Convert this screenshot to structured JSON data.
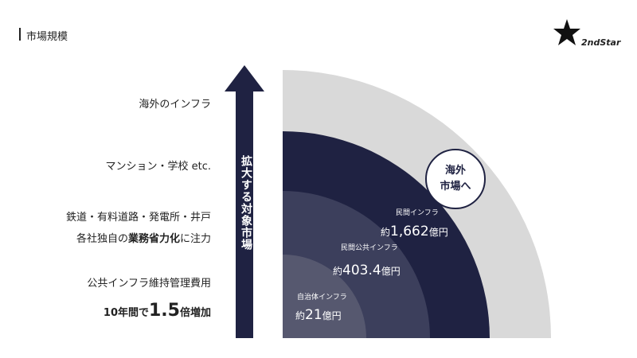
{
  "header": {
    "title": "市場規模",
    "logo": "2ndStar"
  },
  "left_labels": {
    "overseas": "海外のインフラ",
    "buildings": "マンション・学校 etc.",
    "infra": "鉄道・有料道路・発電所・井戸",
    "effort": [
      "各社独自の",
      "業務省力化",
      "に注力"
    ],
    "cost": "公共インフラ維持管理費用",
    "growth": [
      "10年間で",
      "1.5",
      "倍増加"
    ]
  },
  "arrow_label": "拡大する対象市場",
  "overseas_badge": [
    "海外",
    "市場へ"
  ],
  "segments": [
    {
      "name": "民間インフラ",
      "amount": [
        "約",
        "1,662",
        "億円"
      ]
    },
    {
      "name": "民間公共インフラ",
      "amount": [
        "約",
        "403.4",
        "億円"
      ]
    },
    {
      "name": "自治体インフラ",
      "amount": [
        "約",
        "21",
        "億円"
      ]
    }
  ]
}
